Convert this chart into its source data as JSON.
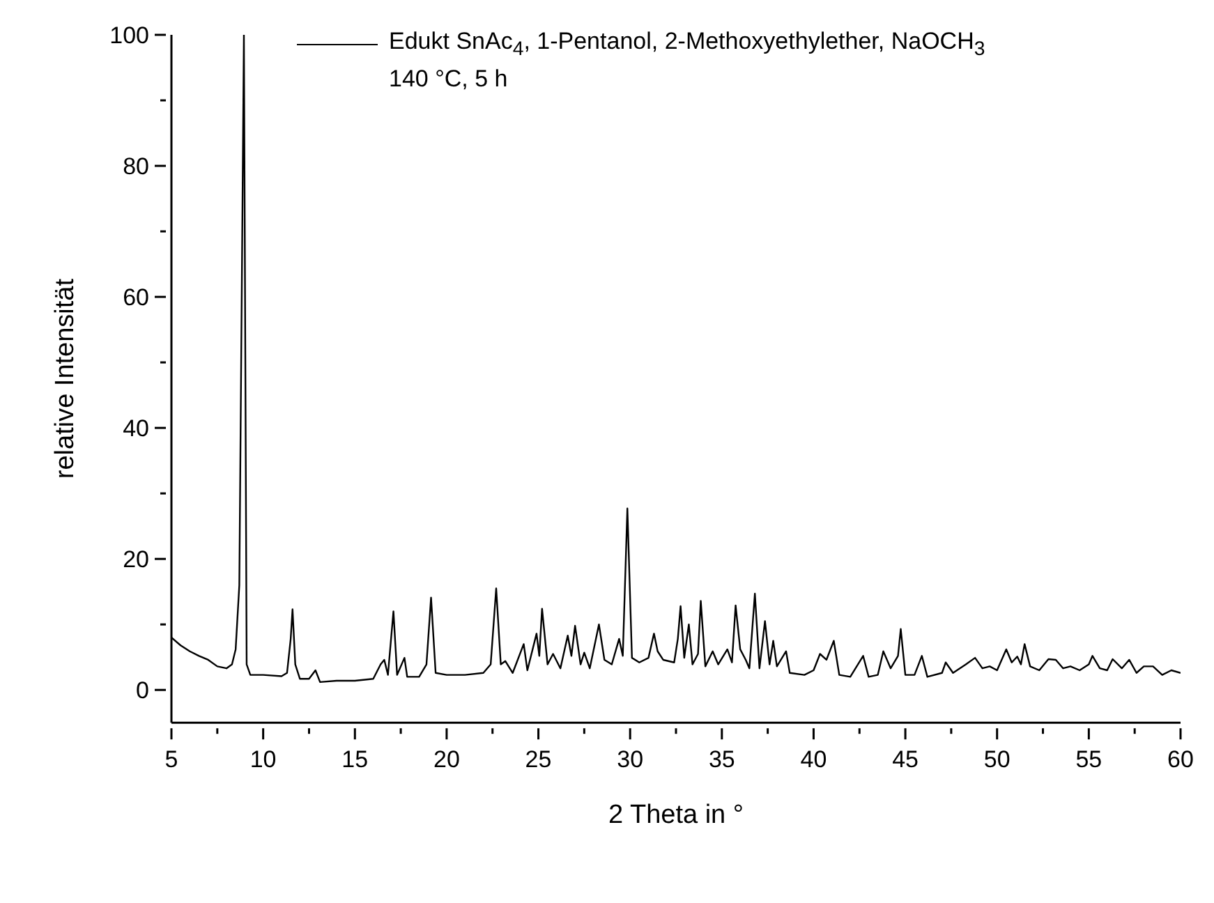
{
  "chart_data": {
    "type": "line",
    "xlabel": "2 Theta in °",
    "ylabel": "relative Intensität",
    "annotations": [
      "140 °C, 5 h"
    ],
    "legend": "top right",
    "marker": "none",
    "line_style": "solid",
    "xlim": [
      5,
      60
    ],
    "ylim": [
      -5,
      100
    ],
    "xticks": [
      5,
      {
        "value": 7.5,
        "label": null
      },
      10,
      {
        "value": 12.5,
        "label": null
      },
      15,
      {
        "value": 17.5,
        "label": null
      },
      20,
      {
        "value": 22.5,
        "label": null
      },
      25,
      {
        "value": 27.5,
        "label": null
      },
      30,
      {
        "value": 32.5,
        "label": null
      },
      35,
      {
        "value": 37.5,
        "label": null
      },
      40,
      {
        "value": 42.5,
        "label": null
      },
      45,
      {
        "value": 47.5,
        "label": null
      },
      50,
      {
        "value": 52.5,
        "label": null
      },
      55,
      {
        "value": 57.5,
        "label": null
      },
      60
    ],
    "yticks": [
      0,
      {
        "value": 10,
        "label": null
      },
      20,
      {
        "value": 30,
        "label": null
      },
      40,
      {
        "value": 50,
        "label": null
      },
      60,
      {
        "value": 70,
        "label": null
      },
      80,
      {
        "value": 90,
        "label": null
      },
      100
    ],
    "series": [
      {
        "name": "Edukt SnAc$_{4}$, 1-Pentanol, 2-Methoxyethylether, NaOCH$_{3}$",
        "color": "#000000",
        "x": [
          5,
          5.5,
          6,
          6.5,
          7,
          7.5,
          8,
          8.3,
          8.5,
          8.7,
          8.95,
          9.1,
          9.3,
          10,
          11,
          11.3,
          11.5,
          11.6,
          11.75,
          12,
          12.5,
          12.85,
          13.1,
          14,
          15,
          16,
          16.4,
          16.6,
          16.8,
          17.1,
          17.3,
          17.7,
          17.85,
          18.5,
          18.9,
          19.15,
          19.4,
          20,
          21,
          22,
          22.4,
          22.7,
          22.95,
          23.2,
          23.6,
          24.2,
          24.4,
          24.9,
          25.05,
          25.2,
          25.5,
          25.8,
          26.2,
          26.6,
          26.8,
          27,
          27.3,
          27.5,
          27.8,
          28.3,
          28.6,
          29,
          29.4,
          29.6,
          29.85,
          30.1,
          30.5,
          31,
          31.3,
          31.5,
          31.8,
          32.4,
          32.6,
          32.75,
          32.95,
          33.2,
          33.4,
          33.7,
          33.85,
          34.1,
          34.5,
          34.8,
          35.3,
          35.55,
          35.75,
          36,
          36.3,
          36.5,
          36.8,
          37.05,
          37.35,
          37.6,
          37.8,
          38,
          38.5,
          38.7,
          39.5,
          40,
          40.35,
          40.7,
          41.1,
          41.4,
          42,
          42.7,
          43,
          43.5,
          43.8,
          44.2,
          44.6,
          44.75,
          45,
          45.5,
          45.9,
          46.2,
          47,
          47.2,
          47.6,
          48.3,
          48.8,
          49.2,
          49.6,
          50,
          50.5,
          50.8,
          51.1,
          51.3,
          51.5,
          51.8,
          52.3,
          52.8,
          53.2,
          53.6,
          54,
          54.5,
          55,
          55.2,
          55.6,
          56,
          56.3,
          56.8,
          57.2,
          57.6,
          58,
          58.5,
          59,
          59.5,
          60
        ],
        "values": [
          8,
          6.8,
          5.9,
          5.2,
          4.6,
          3.6,
          3.3,
          3.9,
          6.2,
          16,
          100,
          3.9,
          2.3,
          2.3,
          2.1,
          2.6,
          7.8,
          12.3,
          3.9,
          1.7,
          1.7,
          3,
          1.2,
          1.4,
          1.4,
          1.7,
          3.9,
          4.6,
          2.3,
          12,
          2.3,
          4.9,
          2,
          2,
          3.9,
          14.1,
          2.6,
          2.3,
          2.3,
          2.6,
          3.9,
          15.5,
          3.9,
          4.4,
          2.6,
          7,
          3,
          8.6,
          5.2,
          12.4,
          3.9,
          5.5,
          3.3,
          8.3,
          5.2,
          9.8,
          3.9,
          5.7,
          3.3,
          10,
          4.6,
          3.9,
          7.8,
          5.2,
          27.7,
          4.9,
          4.2,
          4.9,
          8.6,
          5.9,
          4.6,
          4.2,
          7.8,
          12.8,
          4.9,
          10,
          3.9,
          5.5,
          13.6,
          3.6,
          5.9,
          3.9,
          6.2,
          4.2,
          12.9,
          6.2,
          4.6,
          3.3,
          14.7,
          3.3,
          10.5,
          3.9,
          7.5,
          3.6,
          5.9,
          2.6,
          2.3,
          3,
          5.5,
          4.6,
          7.5,
          2.3,
          2,
          5.2,
          2,
          2.3,
          5.9,
          3.3,
          5.2,
          9.3,
          2.3,
          2.3,
          5.2,
          2,
          2.6,
          4.2,
          2.6,
          3.9,
          4.9,
          3.3,
          3.6,
          3,
          6.2,
          4.2,
          5.1,
          3.9,
          7,
          3.6,
          3,
          4.7,
          4.6,
          3.3,
          3.6,
          3,
          3.9,
          5.2,
          3.3,
          3,
          4.7,
          3.3,
          4.6,
          2.6,
          3.6,
          3.6,
          2.3,
          3,
          2.6
        ]
      }
    ]
  }
}
